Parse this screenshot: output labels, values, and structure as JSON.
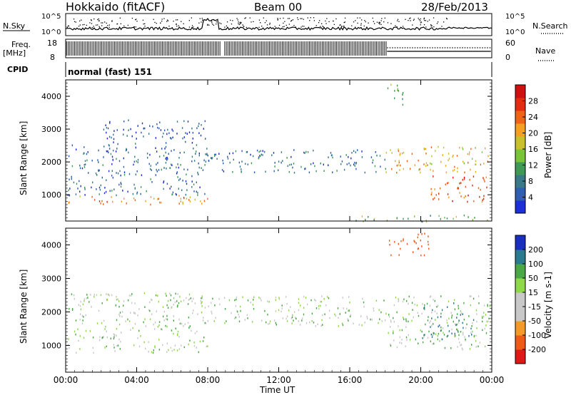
{
  "header": {
    "title": "Hokkaido (fitACF)",
    "beam": "Beam 00",
    "date": "28/Feb/2013"
  },
  "top_panels": {
    "nsky_label": "N.Sky",
    "nsky_ticks": [
      "10^5",
      "10^0"
    ],
    "nsearch_label": "N.Search",
    "nsearch_ticks": [
      "10^5",
      "10^0"
    ],
    "freq_label": "Freq.",
    "freq_unit": "[MHz]",
    "freq_ticks": [
      "18",
      "8"
    ],
    "nave_label": "Nave",
    "nave_ticks": [
      "60",
      "0"
    ],
    "cpid_label": "CPID",
    "cpid_text": "normal (fast) 151"
  },
  "colors": {
    "power": [
      "#1c2fd8",
      "#2f5fb0",
      "#3a7a88",
      "#3f9a56",
      "#7ac43a",
      "#c8c02c",
      "#f4a020",
      "#f06418",
      "#e42c10",
      "#d01010"
    ],
    "velocity": [
      "#e01818",
      "#f05a18",
      "#f49a28",
      "#c8c8c8",
      "#c8c8c8",
      "#8ed84a",
      "#4aa846",
      "#2a7a90",
      "#1a2ec0"
    ]
  },
  "chart_data": [
    {
      "type": "heatmap",
      "panel": "power",
      "ylabel": "Slant Range [km]",
      "ylim": [
        200,
        4500
      ],
      "yticks": [
        1000,
        2000,
        3000,
        4000
      ],
      "xlim": [
        0,
        24
      ],
      "colorbar_label": "Power [dB]",
      "colorbar_ticks": [
        "4",
        "8",
        "12",
        "16",
        "20",
        "24",
        "28"
      ],
      "colorbar_range": [
        0,
        32
      ],
      "regions": [
        {
          "t0": 0.1,
          "t1": 8.0,
          "r0": 700,
          "r1": 1000,
          "value": 22
        },
        {
          "t0": 0.1,
          "t1": 8.0,
          "r0": 1000,
          "r1": 2600,
          "value": 6
        },
        {
          "t0": 2.0,
          "t1": 8.0,
          "r0": 2600,
          "r1": 3300,
          "value": 4
        },
        {
          "t0": 8.0,
          "t1": 18.0,
          "r0": 1700,
          "r1": 2400,
          "value": 7
        },
        {
          "t0": 18.0,
          "t1": 23.8,
          "r0": 1700,
          "r1": 2500,
          "value": 20
        },
        {
          "t0": 18.0,
          "t1": 19.0,
          "r0": 3700,
          "r1": 4400,
          "value": 14
        },
        {
          "t0": 20.5,
          "t1": 23.9,
          "r0": 800,
          "r1": 1600,
          "value": 25
        },
        {
          "t0": 16.0,
          "t1": 23.9,
          "r0": 200,
          "r1": 400,
          "value": 14
        }
      ]
    },
    {
      "type": "heatmap",
      "panel": "velocity",
      "ylabel": "Slant Range [km]",
      "xlabel": "Time UT",
      "ylim": [
        200,
        4500
      ],
      "yticks": [
        1000,
        2000,
        3000,
        4000
      ],
      "xlim": [
        0,
        24
      ],
      "xticks": [
        "00:00",
        "04:00",
        "08:00",
        "12:00",
        "16:00",
        "20:00",
        "00:00"
      ],
      "colorbar_label": "Velocity [m s-1]",
      "colorbar_ticks": [
        "200",
        "100",
        "50",
        "15",
        "-15",
        "-50",
        "-100",
        "-200"
      ],
      "regions": [
        {
          "t0": 0.1,
          "t1": 8.0,
          "r0": 800,
          "r1": 2600,
          "value": 0
        },
        {
          "t0": 8.0,
          "t1": 18.0,
          "r0": 1600,
          "r1": 2500,
          "value": 0
        },
        {
          "t0": 18.0,
          "t1": 23.9,
          "r0": 900,
          "r1": 2500,
          "value": 0
        },
        {
          "t0": 20.0,
          "t1": 23.0,
          "r0": 1200,
          "r1": 2300,
          "value": 60
        },
        {
          "t0": 18.2,
          "t1": 20.5,
          "r0": 3700,
          "r1": 4400,
          "value": -150
        }
      ]
    }
  ]
}
